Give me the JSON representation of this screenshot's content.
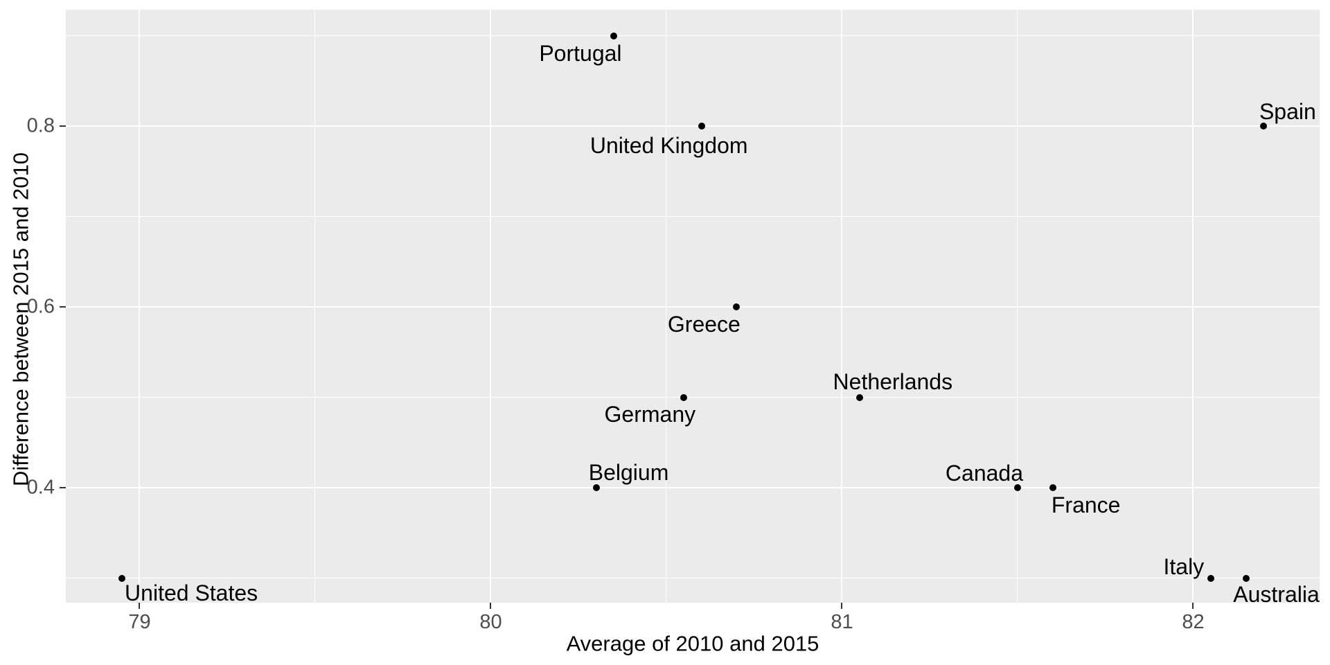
{
  "chart_data": {
    "type": "scatter",
    "title": "",
    "xlabel": "Average of 2010 and 2015",
    "ylabel": "Difference between 2015 and 2010",
    "xlim": [
      78.79,
      82.36
    ],
    "ylim": [
      0.273,
      0.929
    ],
    "x_ticks": [
      {
        "value": 79,
        "label": "79"
      },
      {
        "value": 80,
        "label": "80"
      },
      {
        "value": 81,
        "label": "81"
      },
      {
        "value": 82,
        "label": "82"
      }
    ],
    "y_ticks": [
      {
        "value": 0.4,
        "label": "0.4"
      },
      {
        "value": 0.6,
        "label": "0.6"
      },
      {
        "value": 0.8,
        "label": "0.8"
      }
    ],
    "x_minor_gridlines": [
      79.5,
      80.5,
      81.5
    ],
    "y_minor_gridlines": [
      0.3,
      0.5,
      0.7,
      0.9
    ],
    "grid": "on",
    "legend_position": "none",
    "colors": {
      "panel_background": "#EBEBEB",
      "gridline": "#FFFFFF",
      "point": "#000000",
      "tick_label": "#4D4D4D",
      "tick_mark": "#333333",
      "label_text": "#000000"
    },
    "points": [
      {
        "label": "United States",
        "x": 78.95,
        "y": 0.3,
        "label_offset": [
          100,
          21
        ]
      },
      {
        "label": "Portugal",
        "x": 80.35,
        "y": 0.9,
        "label_offset": [
          -48,
          25
        ]
      },
      {
        "label": "United Kingdom",
        "x": 80.6,
        "y": 0.8,
        "label_offset": [
          -47,
          28
        ]
      },
      {
        "label": "Belgium",
        "x": 80.3,
        "y": 0.4,
        "label_offset": [
          47,
          -22
        ]
      },
      {
        "label": "Germany",
        "x": 80.55,
        "y": 0.5,
        "label_offset": [
          -49,
          24
        ]
      },
      {
        "label": "Greece",
        "x": 80.7,
        "y": 0.6,
        "label_offset": [
          -47,
          25
        ]
      },
      {
        "label": "Netherlands",
        "x": 81.05,
        "y": 0.5,
        "label_offset": [
          48,
          -23
        ]
      },
      {
        "label": "Canada",
        "x": 81.5,
        "y": 0.4,
        "label_offset": [
          -48,
          -21
        ]
      },
      {
        "label": "France",
        "x": 81.6,
        "y": 0.4,
        "label_offset": [
          48,
          25
        ]
      },
      {
        "label": "Italy",
        "x": 82.05,
        "y": 0.3,
        "label_offset": [
          -39,
          -17
        ]
      },
      {
        "label": "Australia",
        "x": 82.15,
        "y": 0.3,
        "label_offset": [
          44,
          23
        ]
      },
      {
        "label": "Spain",
        "x": 82.2,
        "y": 0.8,
        "label_offset": [
          35,
          -21
        ]
      }
    ]
  }
}
